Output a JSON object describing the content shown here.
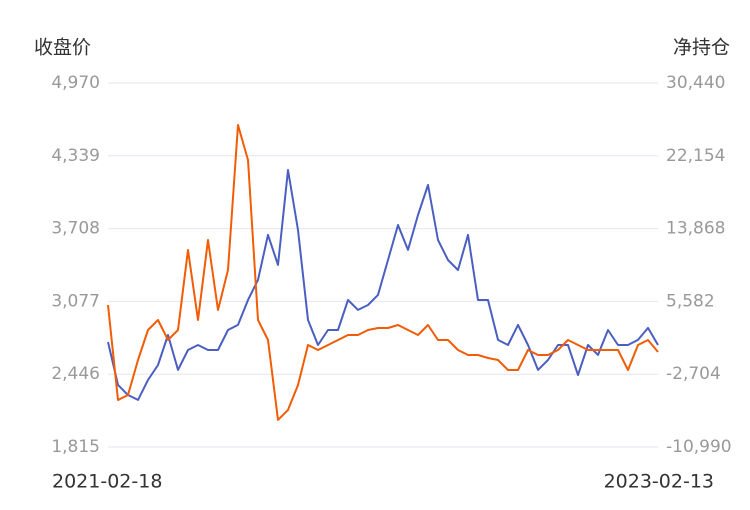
{
  "chart_data": {
    "type": "line",
    "y_label": "收盘价",
    "y2_label": "净持仓",
    "categories": [
      "2021-02-18",
      null,
      null,
      null,
      null,
      null,
      null,
      null,
      null,
      null,
      null,
      null,
      null,
      null,
      null,
      null,
      null,
      null,
      null,
      null,
      null,
      null,
      null,
      null,
      null,
      null,
      null,
      null,
      null,
      null,
      null,
      null,
      null,
      null,
      null,
      null,
      null,
      null,
      null,
      null,
      null,
      null,
      null,
      null,
      null,
      null,
      null,
      null,
      null,
      null,
      null,
      null,
      null,
      null,
      null,
      "2023-02-13"
    ],
    "ylim": [
      1815,
      4970
    ],
    "yticks": [
      {
        "value": 1815,
        "label": "1,815"
      },
      {
        "value": 2446,
        "label": "2,446"
      },
      {
        "value": 3077,
        "label": "3,077"
      },
      {
        "value": 3708,
        "label": "3,708"
      },
      {
        "value": 4339,
        "label": "4,339"
      },
      {
        "value": 4970,
        "label": "4,970"
      }
    ],
    "y2lim": [
      -10990,
      30440
    ],
    "y2ticks": [
      {
        "value": -10990,
        "label": "-10,990"
      },
      {
        "value": -2704,
        "label": "-2,704"
      },
      {
        "value": 5582,
        "label": "5,582"
      },
      {
        "value": 13868,
        "label": "13,868"
      },
      {
        "value": 22154,
        "label": "22,154"
      },
      {
        "value": 30440,
        "label": "30,440"
      }
    ],
    "grid": true,
    "series": [
      {
        "color": "#4a5fc1",
        "axis": "y",
        "values": [
          2725,
          2353,
          2266,
          2223,
          2396,
          2526,
          2786,
          2483,
          2656,
          2699,
          2656,
          2656,
          2829,
          2873,
          3089,
          3263,
          3653,
          3393,
          4216,
          3696,
          2916,
          2699,
          2829,
          2829,
          3089,
          3003,
          3046,
          3133,
          3436,
          3739,
          3523,
          3826,
          4086,
          3609,
          3436,
          3349,
          3653,
          3089,
          3089,
          2743,
          2699,
          2873,
          2699,
          2483,
          2569,
          2699,
          2699,
          2439,
          2699,
          2613,
          2829,
          2699,
          2699,
          2743,
          2847,
          2699
        ]
      },
      {
        "color": "#f25c05",
        "axis": "y2",
        "values": [
          5176,
          -5635,
          -5066,
          -1083,
          2331,
          3469,
          1193,
          2331,
          11435,
          3469,
          12573,
          4607,
          9159,
          25660,
          21677,
          3469,
          1193,
          -7911,
          -6773,
          -3928,
          624,
          55,
          624,
          1193,
          1762,
          1762,
          2331,
          2559,
          2559,
          2900,
          2331,
          1762,
          2900,
          1193,
          1193,
          55,
          -514,
          -514,
          -855,
          -1083,
          -2221,
          -2221,
          55,
          -514,
          -514,
          55,
          1193,
          624,
          55,
          55,
          55,
          55,
          -2221,
          624,
          1193,
          -172
        ]
      }
    ]
  }
}
